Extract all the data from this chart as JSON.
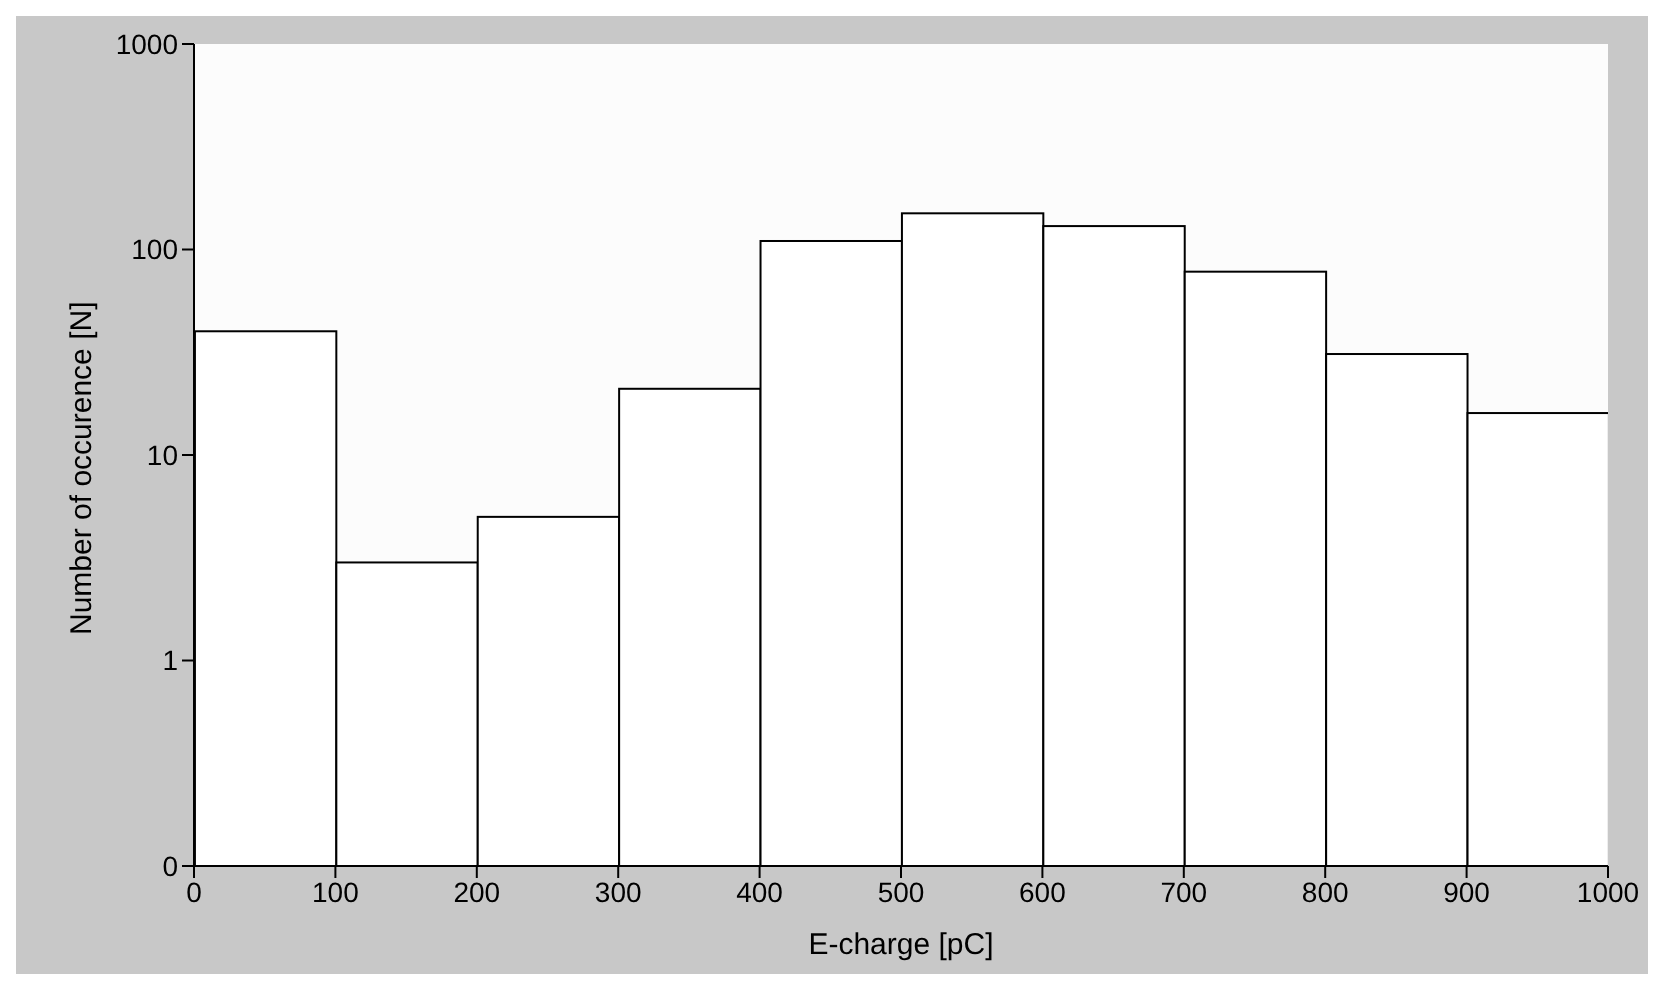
{
  "chart_data": {
    "type": "histogram",
    "xlabel": "E-charge [pC]",
    "ylabel": "Number of occurence [N]",
    "bins": [
      0,
      100,
      200,
      300,
      400,
      500,
      600,
      700,
      800,
      900,
      1000
    ],
    "values": [
      40,
      3,
      5,
      21,
      110,
      150,
      130,
      78,
      31,
      16
    ],
    "color": "#ffffff",
    "xlim": [
      0,
      1000
    ],
    "xticks": [
      0,
      100,
      200,
      300,
      400,
      500,
      600,
      700,
      800,
      900,
      1000
    ],
    "ylim": [
      0.1,
      1000
    ],
    "yticks": [
      {
        "value": 0.1,
        "label": "0"
      },
      1,
      10,
      100,
      1000
    ],
    "log": true
  }
}
